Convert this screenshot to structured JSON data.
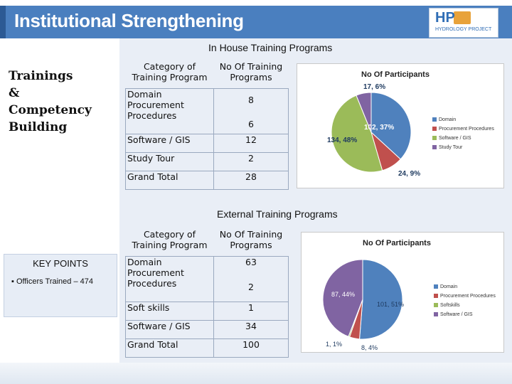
{
  "header": {
    "title": "Institutional Strengthening",
    "logo_text": "HP",
    "logo_sub": "HYDROLOGY PROJECT"
  },
  "left": {
    "heading_lines": [
      "Trainings",
      "&",
      "Competency",
      "Building"
    ],
    "key_points": {
      "title": "KEY POINTS",
      "item": "▪ Officers Trained – 474"
    }
  },
  "in_house": {
    "title": "In House Training Programs",
    "col1": "Category of Training Program",
    "col2": "No Of Training Programs",
    "rows": [
      {
        "cat": "Domain",
        "val": "8"
      },
      {
        "cat": "Procurement Procedures",
        "val": "6"
      },
      {
        "cat": "Software / GIS",
        "val": "12"
      },
      {
        "cat": "Study Tour",
        "val": "2"
      },
      {
        "cat": "Grand Total",
        "val": "28"
      }
    ]
  },
  "external": {
    "title": "External Training Programs",
    "col1": "Category of Training Program",
    "col2": "No Of Training Programs",
    "rows": [
      {
        "cat": "Domain",
        "val": "63"
      },
      {
        "cat": "Procurement Procedures",
        "val": "2"
      },
      {
        "cat": "Soft skills",
        "val": "1"
      },
      {
        "cat": "Software / GIS",
        "val": "34"
      },
      {
        "cat": "Grand Total",
        "val": "100"
      }
    ]
  },
  "chart_data": [
    {
      "type": "pie",
      "title": "No Of Participants",
      "categories": [
        "Domain",
        "Procurement Procedures",
        "Software / GIS",
        "Study Tour"
      ],
      "values": [
        102,
        24,
        134,
        17
      ],
      "percent_labels": [
        "102, 37%",
        "24, 9%",
        "134, 48%",
        "17, 6%"
      ],
      "colors": [
        "#4f81bd",
        "#c0504d",
        "#9bbb59",
        "#8064a2"
      ],
      "legend": "right"
    },
    {
      "type": "pie",
      "title": "No Of Participants",
      "categories": [
        "Domain",
        "Procurement Procedures",
        "Softskills",
        "Software / GIS"
      ],
      "values": [
        101,
        8,
        1,
        87
      ],
      "percent_labels": [
        "101, 51%",
        "8, 4%",
        "1, 1%",
        "87, 44%"
      ],
      "colors": [
        "#4f81bd",
        "#c0504d",
        "#9bbb59",
        "#8064a2"
      ],
      "legend": "right"
    }
  ]
}
